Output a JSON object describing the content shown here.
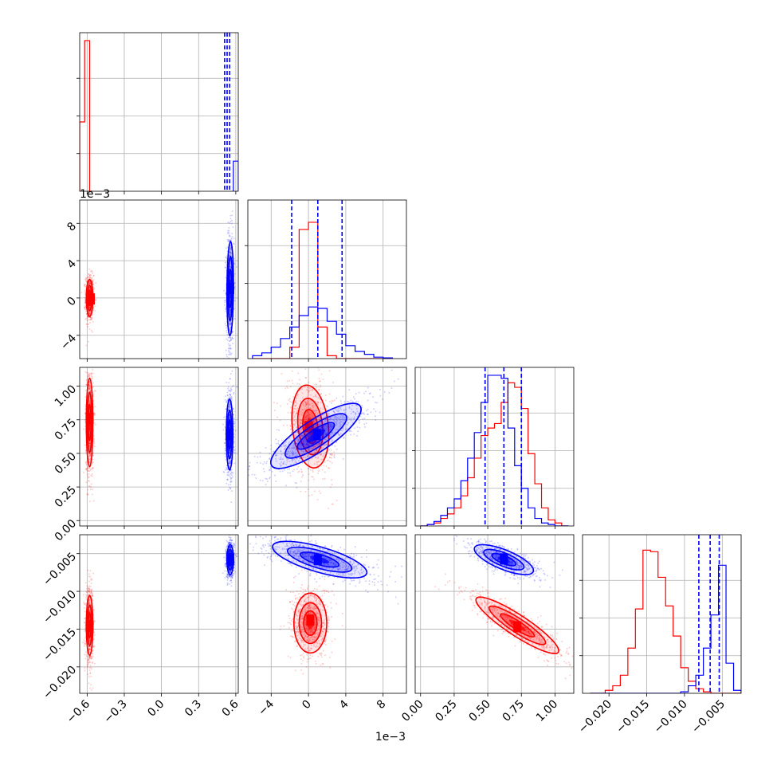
{
  "chart_data": {
    "type": "corner",
    "colors": {
      "series_a": "#ff0000",
      "series_b": "#0000ff"
    },
    "grid": true,
    "params": [
      {
        "id": "p0",
        "range": [
          -0.66,
          0.62
        ],
        "ticks": [
          -0.6,
          -0.3,
          0.0,
          0.3,
          0.6
        ],
        "tick_labels": [
          "−0.6",
          "−0.3",
          "0.0",
          "0.3",
          "0.6"
        ],
        "offset": ""
      },
      {
        "id": "p1",
        "range": [
          -0.0065,
          0.0105
        ],
        "ticks": [
          -0.004,
          0,
          0.004,
          0.008
        ],
        "tick_labels": [
          "−4",
          "0",
          "4",
          "8"
        ],
        "offset": "1e−3"
      },
      {
        "id": "p2",
        "range": [
          -0.04,
          1.14
        ],
        "ticks": [
          0.0,
          0.25,
          0.5,
          0.75,
          1.0
        ],
        "tick_labels": [
          "0.00",
          "0.25",
          "0.50",
          "0.75",
          "1.00"
        ],
        "offset": ""
      },
      {
        "id": "p3",
        "range": [
          -0.0235,
          -0.0025
        ],
        "ticks": [
          -0.02,
          -0.015,
          -0.01,
          -0.005
        ],
        "tick_labels": [
          "−0.020",
          "−0.015",
          "−0.010",
          "−0.005"
        ],
        "offset": ""
      }
    ],
    "histograms": [
      {
        "param": "p0",
        "ymax": 1.0,
        "bin_edges": [
          -0.66,
          -0.64,
          -0.62,
          -0.6,
          -0.58,
          -0.56
        ],
        "series_a": [
          0.46,
          0.46,
          1.0,
          1.0,
          0.0
        ],
        "bin_edges_b": [
          0.58,
          0.62
        ],
        "series_b": [
          0.2
        ],
        "quantiles_b": [
          0.51,
          0.53,
          0.55
        ]
      },
      {
        "param": "p1",
        "ymax": 1.05,
        "bin_edges": [
          -0.006,
          -0.005,
          -0.004,
          -0.003,
          -0.002,
          -0.001,
          0.0,
          0.001,
          0.002,
          0.003,
          0.004,
          0.005,
          0.006,
          0.007,
          0.008,
          0.009
        ],
        "series_a": [
          0,
          0,
          0,
          0,
          0.08,
          0.9,
          0.95,
          0.22,
          0.02,
          0,
          0,
          0,
          0,
          0,
          0
        ],
        "series_b": [
          0.02,
          0.04,
          0.08,
          0.14,
          0.22,
          0.3,
          0.36,
          0.35,
          0.26,
          0.17,
          0.09,
          0.05,
          0.03,
          0.01,
          0.005
        ],
        "quantiles_b": [
          -0.0018,
          0.001,
          0.0036
        ]
      },
      {
        "param": "p2",
        "ymax": 1.0,
        "bin_edges": [
          0.0,
          0.05,
          0.1,
          0.15,
          0.2,
          0.25,
          0.3,
          0.35,
          0.4,
          0.45,
          0.5,
          0.55,
          0.6,
          0.65,
          0.7,
          0.75,
          0.8,
          0.85,
          0.9,
          0.95,
          1.0,
          1.05,
          1.1
        ],
        "series_a": [
          0,
          0.01,
          0.02,
          0.05,
          0.08,
          0.12,
          0.2,
          0.32,
          0.45,
          0.6,
          0.65,
          0.68,
          0.82,
          0.95,
          0.92,
          0.78,
          0.48,
          0.28,
          0.12,
          0.04,
          0.02,
          0.0
        ],
        "series_b": [
          0,
          0.01,
          0.03,
          0.07,
          0.12,
          0.18,
          0.3,
          0.45,
          0.62,
          0.82,
          1.0,
          1.0,
          0.98,
          0.65,
          0.4,
          0.25,
          0.12,
          0.05,
          0.02,
          0.01,
          0,
          0
        ],
        "quantiles_b": [
          0.48,
          0.62,
          0.75
        ]
      },
      {
        "param": "p3",
        "ymax": 1.0,
        "bin_edges": [
          -0.0225,
          -0.0215,
          -0.0205,
          -0.0195,
          -0.0185,
          -0.0175,
          -0.0165,
          -0.0155,
          -0.0145,
          -0.0135,
          -0.0125,
          -0.0115,
          -0.0105,
          -0.0095,
          -0.0085,
          -0.0075,
          -0.0065,
          -0.0055,
          -0.0045,
          -0.0035,
          -0.0025
        ],
        "series_a": [
          0,
          0,
          0.02,
          0.05,
          0.12,
          0.3,
          0.56,
          0.95,
          0.94,
          0.77,
          0.58,
          0.38,
          0.17,
          0.08,
          0.03,
          0.01,
          0,
          0,
          0,
          0
        ],
        "series_b": [
          0,
          0,
          0,
          0,
          0,
          0,
          0,
          0,
          0,
          0,
          0,
          0,
          0.01,
          0.05,
          0.12,
          0.3,
          0.52,
          0.85,
          0.2,
          0.02
        ],
        "quantiles_b": [
          -0.0081,
          -0.0066,
          -0.0054
        ]
      }
    ],
    "pairs": [
      {
        "x": "p0",
        "y": "p1",
        "series_a": {
          "center": [
            -0.58,
            0.0
          ],
          "sd": [
            0.012,
            0.0009
          ],
          "corr": 0.0,
          "mode": [
            -0.57,
            -0.0001
          ]
        },
        "series_b": {
          "center": [
            0.555,
            0.001
          ],
          "sd": [
            0.012,
            0.0023
          ],
          "corr": 0.1,
          "mode": [
            0.555,
            0.001
          ]
        }
      },
      {
        "x": "p0",
        "y": "p2",
        "series_a": {
          "center": [
            -0.58,
            0.73
          ],
          "sd": [
            0.012,
            0.15
          ],
          "corr": 0.0,
          "mode": [
            -0.58,
            0.76
          ]
        },
        "series_b": {
          "center": [
            0.55,
            0.64
          ],
          "sd": [
            0.012,
            0.12
          ],
          "corr": 0.0,
          "mode": [
            0.55,
            0.64
          ]
        }
      },
      {
        "x": "p0",
        "y": "p3",
        "series_a": {
          "center": [
            -0.58,
            -0.0145
          ],
          "sd": [
            0.012,
            0.0018
          ],
          "corr": 0.0,
          "mode": [
            -0.58,
            -0.0146
          ]
        },
        "series_b": {
          "center": [
            0.555,
            -0.0058
          ],
          "sd": [
            0.012,
            0.0009
          ],
          "corr": 0.0,
          "mode": [
            0.555,
            -0.0057
          ]
        }
      },
      {
        "x": "p1",
        "y": "p2",
        "series_a": {
          "center": [
            0.0002,
            0.7
          ],
          "sd": [
            0.0009,
            0.14
          ],
          "corr": -0.2,
          "mode": [
            0.0,
            0.7
          ]
        },
        "series_b": {
          "center": [
            0.0008,
            0.63
          ],
          "sd": [
            0.0022,
            0.11
          ],
          "corr": 0.82,
          "mode": [
            0.0009,
            0.64
          ]
        }
      },
      {
        "x": "p1",
        "y": "p3",
        "series_a": {
          "center": [
            0.0002,
            -0.0142
          ],
          "sd": [
            0.0008,
            0.0018
          ],
          "corr": 0.0,
          "mode": [
            0.0002,
            -0.0138
          ]
        },
        "series_b": {
          "center": [
            0.0012,
            -0.0058
          ],
          "sd": [
            0.0023,
            0.0011
          ],
          "corr": -0.7,
          "mode": [
            0.001,
            -0.0058
          ]
        }
      },
      {
        "x": "p2",
        "y": "p3",
        "series_a": {
          "center": [
            0.72,
            -0.0145
          ],
          "sd": [
            0.14,
            0.0017
          ],
          "corr": -0.9,
          "mode": [
            0.72,
            -0.0147
          ]
        },
        "series_b": {
          "center": [
            0.62,
            -0.0058
          ],
          "sd": [
            0.1,
            0.0009
          ],
          "corr": -0.72,
          "mode": [
            0.62,
            -0.0057
          ]
        }
      }
    ]
  }
}
